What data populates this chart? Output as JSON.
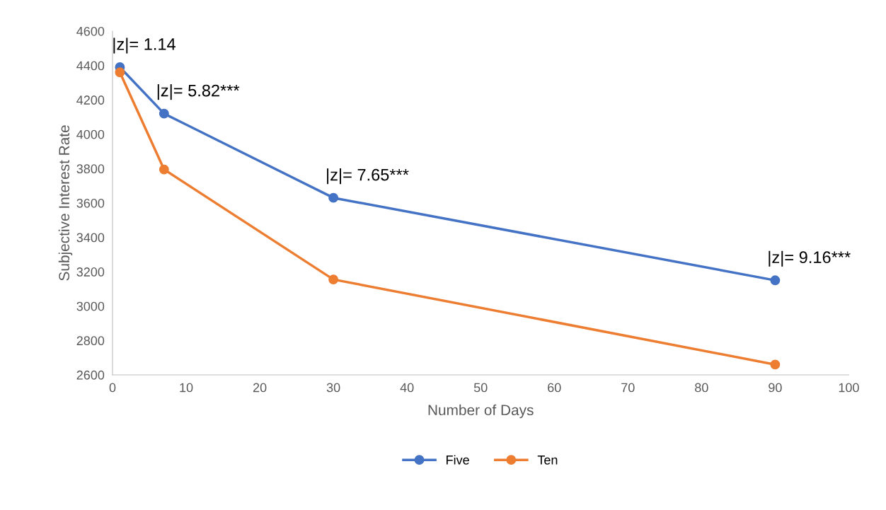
{
  "chart_data": {
    "type": "line",
    "xlabel": "Number of Days",
    "ylabel": "Subjective Interest Rate",
    "x": [
      1,
      7,
      30,
      90
    ],
    "series": [
      {
        "name": "Five",
        "color": "#4472c4",
        "values": [
          4390,
          4120,
          3630,
          3150
        ]
      },
      {
        "name": "Ten",
        "color": "#ed7d31",
        "values": [
          4360,
          3795,
          3155,
          2660
        ]
      }
    ],
    "xlim": [
      0,
      100
    ],
    "xticks": [
      0,
      10,
      20,
      30,
      40,
      50,
      60,
      70,
      80,
      90,
      100
    ],
    "ylim": [
      2600,
      4600
    ],
    "yticks": [
      2600,
      2800,
      3000,
      3200,
      3400,
      3600,
      3800,
      4000,
      4200,
      4400,
      4600
    ],
    "annotations": [
      {
        "text": "|z|= 1.14",
        "x": 1,
        "y": 4390
      },
      {
        "text": "|z|= 5.82***",
        "x": 7,
        "y": 4120
      },
      {
        "text": "|z|= 7.65***",
        "x": 30,
        "y": 3630
      },
      {
        "text": "|z|= 9.16***",
        "x": 90,
        "y": 3150
      }
    ],
    "marker": "circle",
    "line_style": "solid",
    "legend": "bottom",
    "grid": false
  }
}
